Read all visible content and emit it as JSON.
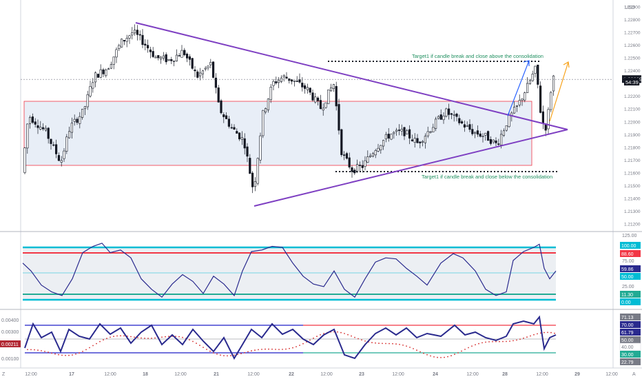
{
  "chart_data": [
    {
      "id": "price",
      "type": "candlestick",
      "currency": "USD",
      "ylim": [
        1.2115,
        1.2295
      ],
      "y_ticks": [
        "1.22900",
        "1.22800",
        "1.22700",
        "1.22600",
        "1.22500",
        "1.22400",
        "1.22300",
        "1.22200",
        "1.22100",
        "1.22000",
        "1.21900",
        "1.21800",
        "1.21700",
        "1.21600",
        "1.21500",
        "1.21400",
        "1.21300",
        "1.21200"
      ],
      "y_tick_values": [
        1.229,
        1.228,
        1.227,
        1.226,
        1.225,
        1.224,
        1.223,
        1.222,
        1.221,
        1.22,
        1.219,
        1.218,
        1.217,
        1.216,
        1.215,
        1.214,
        1.213,
        1.212
      ],
      "last_price": "1.22329",
      "last_price_value": 1.22329,
      "countdown": "54:39",
      "consolidation_range": {
        "top": 1.2211,
        "bottom": 1.2164
      },
      "triangle": {
        "upper": [
          [
            0.0,
            1.2273
          ],
          [
            1.0,
            1.2189
          ]
        ],
        "lower": [
          [
            0.0,
            1.2131
          ],
          [
            1.0,
            1.2189
          ]
        ]
      },
      "target_above": {
        "level": 1.2243,
        "label": "Target1 if candle break and close above the consolidation"
      },
      "target_below": {
        "level": 1.2156,
        "label": "Target1 if candle break and close below the consolidation"
      }
    },
    {
      "id": "oscillator",
      "type": "line",
      "ylim": [
        -5,
        130
      ],
      "y_ticks": [
        "125.00",
        "100.00",
        "75.00",
        "50.00",
        "25.00",
        "0.00"
      ],
      "y_tick_values": [
        125,
        100,
        75,
        50,
        25,
        0
      ],
      "levels": [
        {
          "value": 100,
          "label": "100.00",
          "color": "#00bcd4"
        },
        {
          "value": 88.6,
          "label": "88.60",
          "color": "#f23645"
        },
        {
          "value": 59.86,
          "label": "59.86",
          "color": "#2a2a8e"
        },
        {
          "value": 50,
          "label": "50.00",
          "color": "#00bcd4"
        },
        {
          "value": 11.3,
          "label": "11.30",
          "color": "#22ab94"
        },
        {
          "value": 0,
          "label": "0.00",
          "color": "#00bcd4"
        }
      ]
    },
    {
      "id": "volatility",
      "type": "line",
      "left_ticks": [
        "0.00400",
        "0.00300",
        "0.00200",
        "0.00100"
      ],
      "left_tick_values": [
        0.004,
        0.003,
        0.002,
        0.001
      ],
      "left_value_badge": "0.00211",
      "right_ticks": [
        {
          "label": "71.13",
          "value": 71.13,
          "color": "#787b86"
        },
        {
          "label": "70.00",
          "value": 70,
          "color": "#2a2a8e"
        },
        {
          "label": "61.79",
          "value": 61.79,
          "color": "#2a2a8e"
        },
        {
          "label": "50.00",
          "value": 50,
          "color": "#787b86"
        },
        {
          "label": "40.00",
          "value": 40,
          "color": "#ffffff"
        },
        {
          "label": "30.00",
          "value": 30,
          "color": "#22ab94"
        },
        {
          "label": "22.79",
          "value": 22.79,
          "color": "#787b86"
        }
      ]
    }
  ],
  "time_axis": {
    "labels": [
      "12:00",
      "17",
      "12:00",
      "18",
      "12:00",
      "21",
      "12:00",
      "22",
      "12:00",
      "23",
      "12:00",
      "24",
      "12:00",
      "28",
      "12:00",
      "29",
      "12:00"
    ],
    "bold": [
      "17",
      "18",
      "21",
      "22",
      "23",
      "24",
      "28",
      "29"
    ]
  },
  "corner_left": "Z",
  "corner_right": "A"
}
